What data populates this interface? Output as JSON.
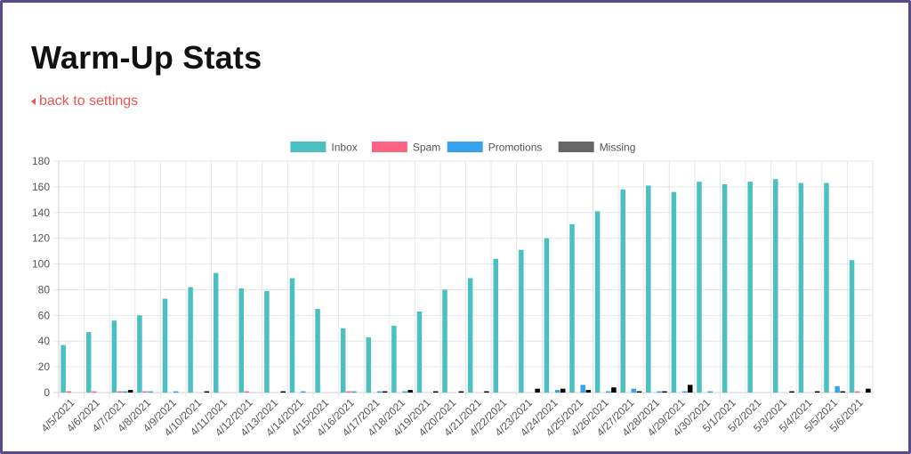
{
  "page": {
    "title": "Warm-Up Stats",
    "back_link": "back to settings",
    "accent_color": "#ef5350"
  },
  "chart_data": {
    "type": "bar",
    "categories": [
      "4/5/2021",
      "4/6/2021",
      "4/7/2021",
      "4/8/2021",
      "4/9/2021",
      "4/10/2021",
      "4/11/2021",
      "4/12/2021",
      "4/13/2021",
      "4/14/2021",
      "4/15/2021",
      "4/16/2021",
      "4/17/2021",
      "4/18/2021",
      "4/19/2021",
      "4/20/2021",
      "4/21/2021",
      "4/22/2021",
      "4/23/2021",
      "4/24/2021",
      "4/25/2021",
      "4/26/2021",
      "4/27/2021",
      "4/28/2021",
      "4/29/2021",
      "4/30/2021",
      "5/1/2021",
      "5/2/2021",
      "5/3/2021",
      "5/4/2021",
      "5/5/2021",
      "5/6/2021"
    ],
    "series": [
      {
        "name": "Inbox",
        "color": "#4bc0c0",
        "values": [
          37,
          47,
          56,
          60,
          73,
          82,
          93,
          81,
          79,
          89,
          65,
          50,
          43,
          52,
          63,
          80,
          89,
          104,
          111,
          120,
          131,
          141,
          158,
          161,
          156,
          164,
          162,
          164,
          166,
          163,
          163,
          103
        ]
      },
      {
        "name": "Spam",
        "color": "#ff6384",
        "values": [
          1,
          1,
          1,
          1,
          0,
          0,
          0,
          1,
          0,
          0,
          0,
          1,
          0,
          0,
          0,
          0,
          0,
          0,
          0,
          0,
          0,
          0,
          0,
          0,
          0,
          0,
          0,
          0,
          0,
          0,
          0,
          1
        ]
      },
      {
        "name": "Promotions",
        "color": "#36a2eb",
        "values": [
          0,
          0,
          1,
          1,
          1,
          0,
          0,
          0,
          0,
          1,
          0,
          1,
          1,
          1,
          0,
          0,
          0,
          0,
          0,
          2,
          6,
          1,
          3,
          1,
          1,
          1,
          0,
          0,
          0,
          0,
          5,
          0
        ]
      },
      {
        "name": "Missing",
        "color": "#000000",
        "legend_color": "#666666",
        "values": [
          0,
          0,
          2,
          0,
          0,
          1,
          0,
          0,
          1,
          0,
          0,
          0,
          1,
          2,
          1,
          1,
          1,
          0,
          3,
          3,
          2,
          4,
          1,
          1,
          6,
          0,
          0,
          0,
          1,
          1,
          1,
          3
        ]
      }
    ],
    "ylim": [
      0,
      180
    ],
    "yticks": [
      0,
      20,
      40,
      60,
      80,
      100,
      120,
      140,
      160,
      180
    ],
    "xlabel": "",
    "ylabel": "",
    "title": "",
    "grid": true,
    "legend": "top-center"
  }
}
